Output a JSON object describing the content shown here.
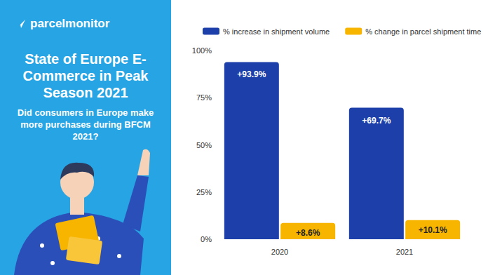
{
  "brand": "parcelmonitor",
  "chart_data": {
    "type": "bar",
    "title": "State of Europe E-Commerce in Peak Season 2021",
    "subtitle": "Did consumers in Europe make more purchases during BFCM 2021?",
    "categories": [
      "2020",
      "2021"
    ],
    "series": [
      {
        "name": "% increase in shipment volume",
        "color": "#1c3faa",
        "values": [
          93.9,
          69.7
        ],
        "value_labels": [
          "+93.9%",
          "+69.7%"
        ]
      },
      {
        "name": "% change in parcel shipment time",
        "color": "#f7b500",
        "values": [
          8.6,
          10.1
        ],
        "value_labels": [
          "+8.6%",
          "+10.1%"
        ]
      }
    ],
    "ylim": [
      0,
      100
    ],
    "yticks": [
      {
        "value": 0,
        "label": "0%"
      },
      {
        "value": 25,
        "label": "25%"
      },
      {
        "value": 50,
        "label": "50%"
      },
      {
        "value": 75,
        "label": "75%"
      },
      {
        "value": 100,
        "label": "100%"
      }
    ],
    "grid": false,
    "legend": "top",
    "data_labels": true
  }
}
